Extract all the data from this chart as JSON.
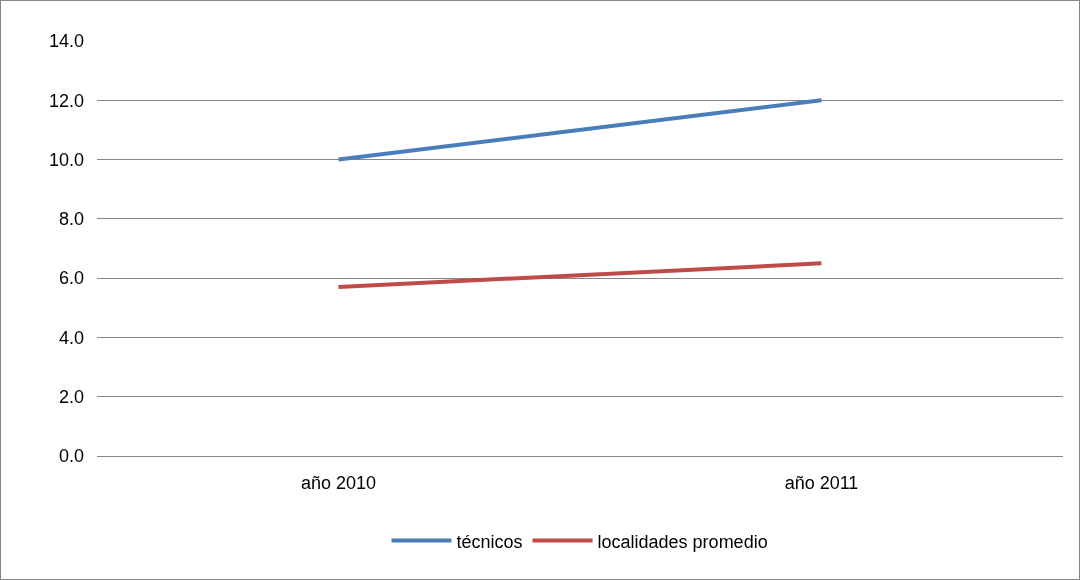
{
  "chart_data": {
    "type": "line",
    "categories": [
      "año 2010",
      "año 2011"
    ],
    "series": [
      {
        "name": "técnicos",
        "color": "#4a7ebb",
        "values": [
          10,
          12
        ]
      },
      {
        "name": "localidades promedio",
        "color": "#be4b48",
        "values": [
          5.7,
          6.5
        ]
      }
    ],
    "ylim": [
      0,
      14
    ],
    "yticks": [
      {
        "value": 0,
        "label": "0.0"
      },
      {
        "value": 2,
        "label": "2.0"
      },
      {
        "value": 4,
        "label": "4.0"
      },
      {
        "value": 6,
        "label": "6.0"
      },
      {
        "value": 8,
        "label": "8.0"
      },
      {
        "value": 10,
        "label": "10.0"
      },
      {
        "value": 12,
        "label": "12.0"
      },
      {
        "value": 14,
        "label": "14.0"
      }
    ],
    "grid": "y",
    "legend": "bottom",
    "marker": "none",
    "line_style": "solid"
  }
}
